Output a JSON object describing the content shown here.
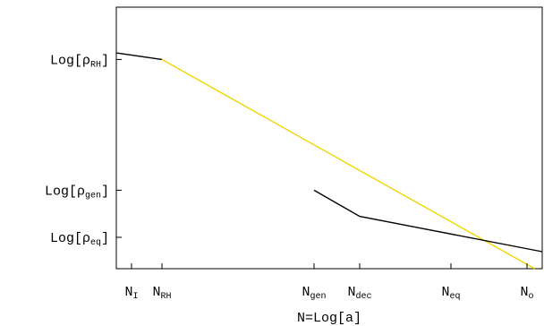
{
  "chart_data": {
    "type": "line",
    "title": "",
    "xlabel": "N=Log[a]",
    "ylabel": "",
    "grid": false,
    "legend": "none",
    "colors": {
      "frame": "#000000",
      "black_series": "#000000",
      "yellow_series": "#f2d600"
    },
    "x_ticks": [
      {
        "label": "N",
        "sub": "I",
        "x": 0.5
      },
      {
        "label": "N",
        "sub": "RH",
        "x": 1.5
      },
      {
        "label": "N",
        "sub": "gen",
        "x": 6.5
      },
      {
        "label": "N",
        "sub": "dec",
        "x": 8.0
      },
      {
        "label": "N",
        "sub": "eq",
        "x": 11.0
      },
      {
        "label": "N",
        "sub": "o",
        "x": 13.5
      }
    ],
    "y_ticks": [
      {
        "label": "Log[ρ",
        "sub": "RH",
        "tail": "]",
        "y": 8.0
      },
      {
        "label": "Log[ρ",
        "sub": "gen",
        "tail": "]",
        "y": 3.0
      },
      {
        "label": "Log[ρ",
        "sub": "eq",
        "tail": "]",
        "y": 1.2
      }
    ],
    "xlim": [
      0,
      14
    ],
    "ylim": [
      0,
      10
    ],
    "series": [
      {
        "color": "black",
        "points": [
          [
            0,
            8.25
          ],
          [
            1.5,
            8.0
          ]
        ]
      },
      {
        "color": "yellow",
        "points": [
          [
            1.5,
            8.0
          ],
          [
            13.75,
            0
          ]
        ]
      },
      {
        "color": "black",
        "points": [
          [
            6.5,
            3.0
          ],
          [
            8.0,
            2.0
          ],
          [
            14,
            0.65
          ]
        ]
      }
    ]
  }
}
